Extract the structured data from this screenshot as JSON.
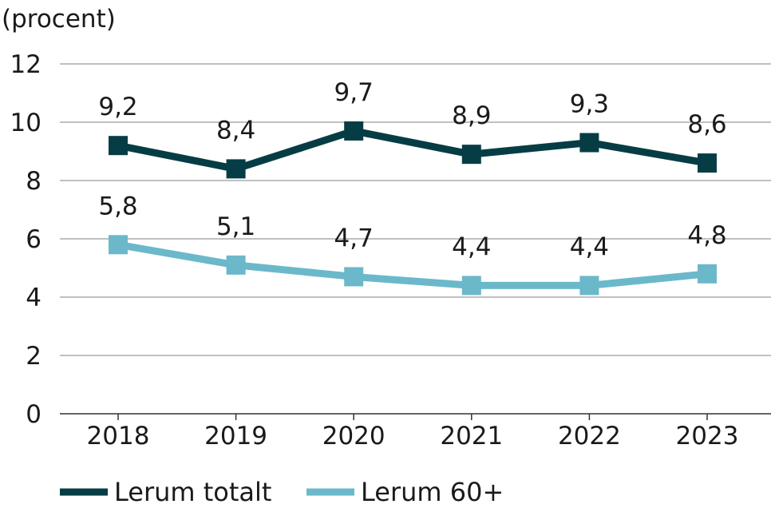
{
  "chart_data": {
    "type": "line",
    "unit_label": "(procent)",
    "categories": [
      "2018",
      "2019",
      "2020",
      "2021",
      "2022",
      "2023"
    ],
    "series": [
      {
        "name": "Lerum totalt",
        "values": [
          9.2,
          8.4,
          9.7,
          8.9,
          9.3,
          8.6
        ],
        "labels": [
          "9,2",
          "8,4",
          "9,7",
          "8,9",
          "9,3",
          "8,6"
        ],
        "color": "#063d45"
      },
      {
        "name": "Lerum 60+",
        "values": [
          5.8,
          5.1,
          4.7,
          4.4,
          4.4,
          4.8
        ],
        "labels": [
          "5,8",
          "5,1",
          "4,7",
          "4,4",
          "4,4",
          "4,8"
        ],
        "color": "#6bb8cb"
      }
    ],
    "ylim": [
      0,
      12
    ],
    "yticks": [
      "0",
      "2",
      "4",
      "6",
      "8",
      "10",
      "12"
    ],
    "grid": true,
    "legend_position": "bottom"
  }
}
